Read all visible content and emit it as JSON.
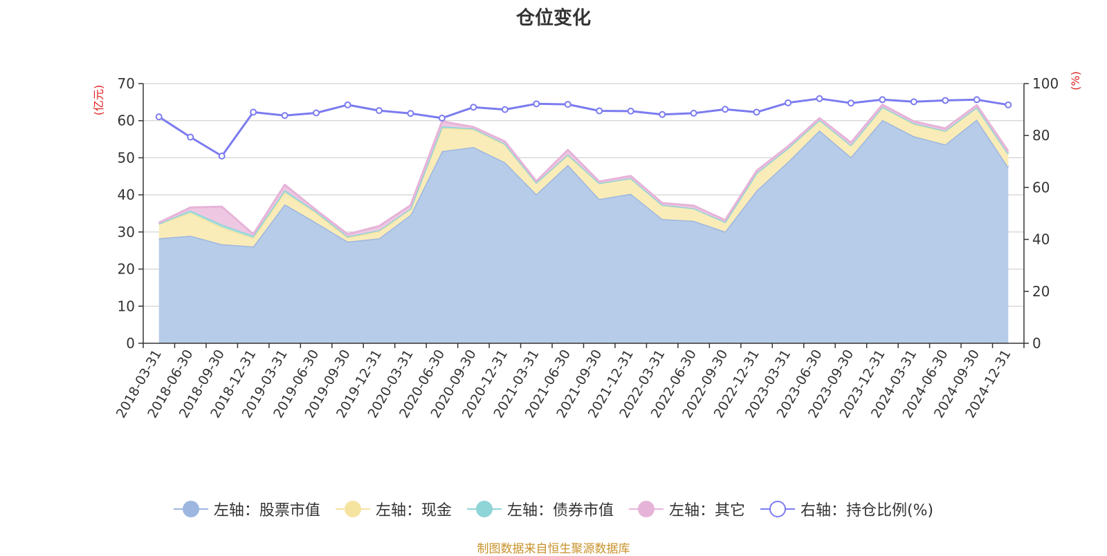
{
  "chart_data": {
    "type": "area",
    "title": "仓位变化",
    "y_left_label": "(亿元)",
    "y_right_label": "(%)",
    "ylim_left": [
      0,
      70
    ],
    "ylim_right": [
      0,
      100
    ],
    "yticks_left": [
      0,
      10,
      20,
      30,
      40,
      50,
      60,
      70
    ],
    "yticks_right": [
      0,
      20,
      40,
      60,
      80,
      100
    ],
    "grid": true,
    "legend_position": "bottom",
    "categories": [
      "2018-03-31",
      "2018-06-30",
      "2018-09-30",
      "2018-12-31",
      "2019-03-31",
      "2019-06-30",
      "2019-09-30",
      "2019-12-31",
      "2020-03-31",
      "2020-06-30",
      "2020-09-30",
      "2020-12-31",
      "2021-03-31",
      "2021-06-30",
      "2021-09-30",
      "2021-12-31",
      "2022-03-31",
      "2022-06-30",
      "2022-09-30",
      "2022-12-31",
      "2023-03-31",
      "2023-06-30",
      "2023-09-30",
      "2023-12-31",
      "2024-03-31",
      "2024-06-30",
      "2024-09-30",
      "2024-12-31"
    ],
    "series": [
      {
        "name": "左轴：股票市值",
        "axis": "left",
        "kind": "stack",
        "color": "#9db6e0",
        "fill": "#b7cce8",
        "values": [
          28.3,
          29.0,
          26.7,
          26.1,
          37.5,
          32.5,
          27.4,
          28.3,
          34.6,
          51.8,
          52.9,
          48.8,
          40.2,
          48.1,
          38.9,
          40.3,
          33.5,
          33.0,
          30.1,
          41.2,
          48.9,
          57.4,
          50.2,
          60.2,
          55.8,
          53.6,
          60.3,
          47.5
        ]
      },
      {
        "name": "左轴：现金",
        "axis": "left",
        "kind": "stack",
        "color": "#f5e4a0",
        "fill": "#faecb8",
        "values": [
          3.9,
          6.2,
          4.6,
          2.3,
          3.2,
          2.6,
          1.1,
          1.9,
          1.7,
          6.2,
          4.8,
          4.8,
          3.1,
          2.6,
          4.3,
          4.2,
          3.8,
          3.4,
          2.6,
          4.7,
          3.7,
          2.8,
          3.2,
          3.5,
          3.3,
          3.5,
          3.3,
          3.6
        ]
      },
      {
        "name": "左轴：债券市值",
        "axis": "left",
        "kind": "stack",
        "color": "#8fd4d6",
        "fill": "#a8dedf",
        "values": [
          0,
          0.6,
          0.7,
          0.6,
          0.6,
          0.4,
          0.3,
          0.3,
          0,
          0.5,
          0.2,
          0.2,
          0,
          0.2,
          0,
          0,
          0,
          0,
          0,
          0,
          0,
          0,
          0,
          0,
          0.2,
          0.2,
          0,
          0
        ]
      },
      {
        "name": "左轴：其它",
        "axis": "left",
        "kind": "stack",
        "color": "#e6b3d8",
        "fill": "#eec8e2",
        "values": [
          0.3,
          0.8,
          4.8,
          0.4,
          1.4,
          0.4,
          0.6,
          1.1,
          0.9,
          1.3,
          0.4,
          0.6,
          0.4,
          1.2,
          0.4,
          0.6,
          0.5,
          0.7,
          0.5,
          0.6,
          0.5,
          0.5,
          0.7,
          0.6,
          0.5,
          0.6,
          0.6,
          0.7
        ]
      },
      {
        "name": "右轴：持仓比例(%)",
        "axis": "right",
        "kind": "line",
        "color": "#7b7bf0",
        "values": [
          87.2,
          79.4,
          72.1,
          89.0,
          87.7,
          88.7,
          91.8,
          89.6,
          88.5,
          86.7,
          90.9,
          90.0,
          92.2,
          92.0,
          89.5,
          89.4,
          88.1,
          88.6,
          90.1,
          89.0,
          92.6,
          94.2,
          92.5,
          93.8,
          93.0,
          93.5,
          93.8,
          91.8
        ]
      }
    ]
  },
  "footer": {
    "source": "制图数据来自恒生聚源数据库"
  }
}
